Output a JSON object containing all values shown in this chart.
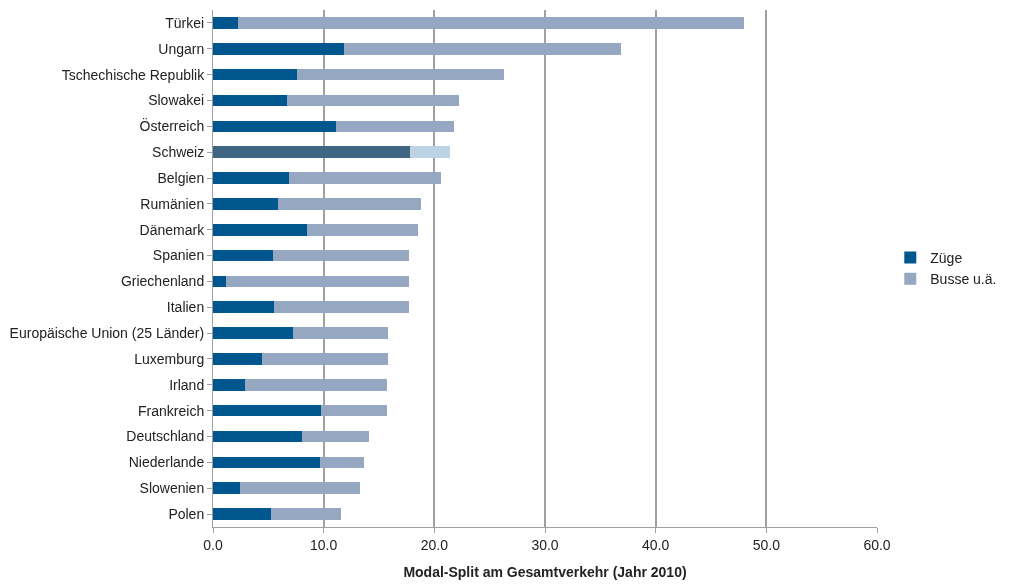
{
  "chart_data": {
    "type": "bar",
    "orientation": "horizontal",
    "stacked": true,
    "xlabel": "Modal-Split am Gesamtverkehr (Jahr 2010)",
    "categories": [
      "Türkei",
      "Ungarn",
      "Tschechische Republik",
      "Slowakei",
      "Österreich",
      "Schweiz",
      "Belgien",
      "Rumänien",
      "Dänemark",
      "Spanien",
      "Griechenland",
      "Italien",
      "Europäische Union (25 Länder)",
      "Luxemburg",
      "Irland",
      "Frankreich",
      "Deutschland",
      "Niederlande",
      "Slowenien",
      "Polen"
    ],
    "series": [
      {
        "name": "Züge",
        "colors": [
          "#00578f",
          "#00578f",
          "#00578f",
          "#00578f",
          "#00578f",
          "#3e6582",
          "#00578f",
          "#00578f",
          "#00578f",
          "#00578f",
          "#00578f",
          "#00578f",
          "#00578f",
          "#00578f",
          "#00578f",
          "#00578f",
          "#00578f",
          "#00578f",
          "#00578f",
          "#00578f"
        ],
        "values": [
          2.3,
          11.8,
          7.6,
          6.7,
          11.1,
          17.8,
          6.9,
          5.9,
          8.5,
          5.4,
          1.2,
          5.5,
          7.2,
          4.4,
          2.9,
          9.8,
          8.0,
          9.7,
          2.4,
          5.2
        ]
      },
      {
        "name": "Busse u.ä.",
        "colors": [
          "#96a7c2",
          "#96a7c2",
          "#96a7c2",
          "#96a7c2",
          "#96a7c2",
          "#bdd3e3",
          "#96a7c2",
          "#96a7c2",
          "#96a7c2",
          "#96a7c2",
          "#96a7c2",
          "#96a7c2",
          "#96a7c2",
          "#96a7c2",
          "#96a7c2",
          "#96a7c2",
          "#96a7c2",
          "#96a7c2",
          "#96a7c2",
          "#96a7c2"
        ],
        "values": [
          45.7,
          25.1,
          18.7,
          15.5,
          10.7,
          3.6,
          13.7,
          12.9,
          10.0,
          12.3,
          16.5,
          12.2,
          8.6,
          11.4,
          12.8,
          5.9,
          6.1,
          3.9,
          10.9,
          6.4
        ]
      }
    ],
    "xlim": [
      0,
      60
    ],
    "xticks": [
      {
        "value": 0,
        "label": "0.0"
      },
      {
        "value": 10,
        "label": "10.0"
      },
      {
        "value": 20,
        "label": "20.0"
      },
      {
        "value": 30,
        "label": "30.0"
      },
      {
        "value": 40,
        "label": "40.0"
      },
      {
        "value": 50,
        "label": "50.0"
      },
      {
        "value": 60,
        "label": "60.0"
      }
    ],
    "grid": "x",
    "legend": "right"
  }
}
